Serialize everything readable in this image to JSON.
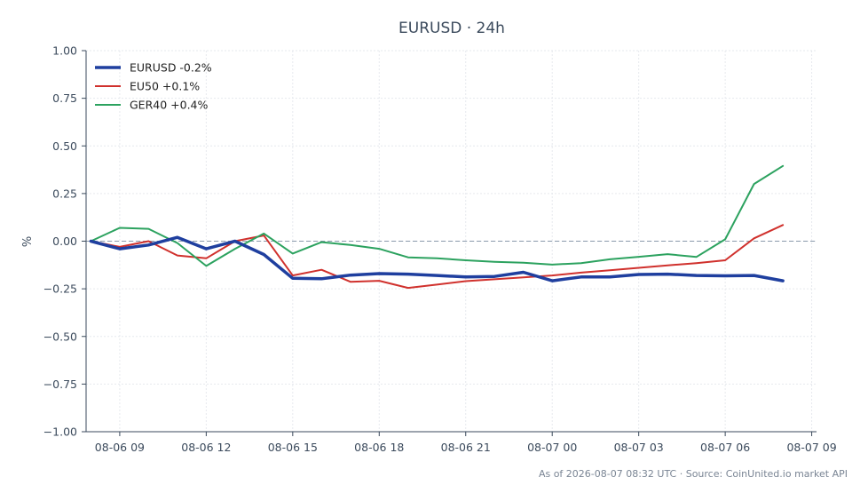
{
  "chart_data": {
    "type": "line",
    "title": "EURUSD · 24h",
    "ylabel": "%",
    "xlabel": "",
    "ylim": [
      -1.0,
      1.0
    ],
    "yticks": [
      1.0,
      0.75,
      0.5,
      0.25,
      0.0,
      -0.25,
      -0.5,
      -0.75,
      -1.0
    ],
    "ytick_labels": [
      "1.00",
      "0.75",
      "0.50",
      "0.25",
      "0.00",
      "−0.25",
      "−0.50",
      "−0.75",
      "−1.00"
    ],
    "xlim": [
      "2026-08-06 07:50",
      "2026-08-07 09:10"
    ],
    "xticks": [
      "2026-08-06 09:00",
      "2026-08-06 12:00",
      "2026-08-06 15:00",
      "2026-08-06 18:00",
      "2026-08-06 21:00",
      "2026-08-07 00:00",
      "2026-08-07 03:00",
      "2026-08-07 06:00",
      "2026-08-07 09:00"
    ],
    "xtick_labels": [
      "08-06 09",
      "08-06 12",
      "08-06 15",
      "08-06 18",
      "08-06 21",
      "08-07 00",
      "08-07 03",
      "08-07 06",
      "08-07 09"
    ],
    "grid": true,
    "zero_line": true,
    "legend_position": "top-left",
    "x": [
      "2026-08-06 08:00",
      "2026-08-06 09:00",
      "2026-08-06 10:00",
      "2026-08-06 11:00",
      "2026-08-06 12:00",
      "2026-08-06 13:00",
      "2026-08-06 14:00",
      "2026-08-06 15:00",
      "2026-08-06 16:00",
      "2026-08-06 17:00",
      "2026-08-06 18:00",
      "2026-08-06 19:00",
      "2026-08-06 20:00",
      "2026-08-06 21:00",
      "2026-08-06 22:00",
      "2026-08-06 23:00",
      "2026-08-07 00:00",
      "2026-08-07 01:00",
      "2026-08-07 02:00",
      "2026-08-07 03:00",
      "2026-08-07 04:00",
      "2026-08-07 05:00",
      "2026-08-07 06:00",
      "2026-08-07 07:00",
      "2026-08-07 08:00"
    ],
    "series": [
      {
        "name": "EURUSD -0.2%",
        "color": "#1f3f9f",
        "width": 3.5,
        "values": [
          0.0,
          -0.04,
          -0.02,
          0.02,
          -0.04,
          0.0,
          -0.07,
          -0.195,
          -0.197,
          -0.178,
          -0.17,
          -0.173,
          -0.18,
          -0.188,
          -0.185,
          -0.163,
          -0.208,
          -0.188,
          -0.188,
          -0.175,
          -0.173,
          -0.18,
          -0.182,
          -0.18,
          -0.208
        ]
      },
      {
        "name": "EU50 +0.1%",
        "color": "#d0312d",
        "width": 2,
        "values": [
          0.0,
          -0.03,
          0.0,
          -0.075,
          -0.09,
          0.0,
          0.03,
          -0.18,
          -0.15,
          -0.213,
          -0.208,
          -0.245,
          -0.228,
          -0.21,
          -0.2,
          -0.19,
          -0.18,
          -0.165,
          -0.153,
          -0.14,
          -0.127,
          -0.115,
          -0.1,
          0.015,
          0.085
        ]
      },
      {
        "name": "GER40 +0.4%",
        "color": "#2ca25f",
        "width": 2,
        "values": [
          0.0,
          0.07,
          0.065,
          -0.01,
          -0.13,
          -0.04,
          0.04,
          -0.065,
          -0.005,
          -0.02,
          -0.04,
          -0.085,
          -0.09,
          -0.1,
          -0.108,
          -0.113,
          -0.123,
          -0.115,
          -0.095,
          -0.082,
          -0.068,
          -0.083,
          0.01,
          0.3,
          0.395
        ]
      }
    ]
  },
  "footnote": "As of 2026-08-07 08:32 UTC · Source: CoinUnited.io market API"
}
